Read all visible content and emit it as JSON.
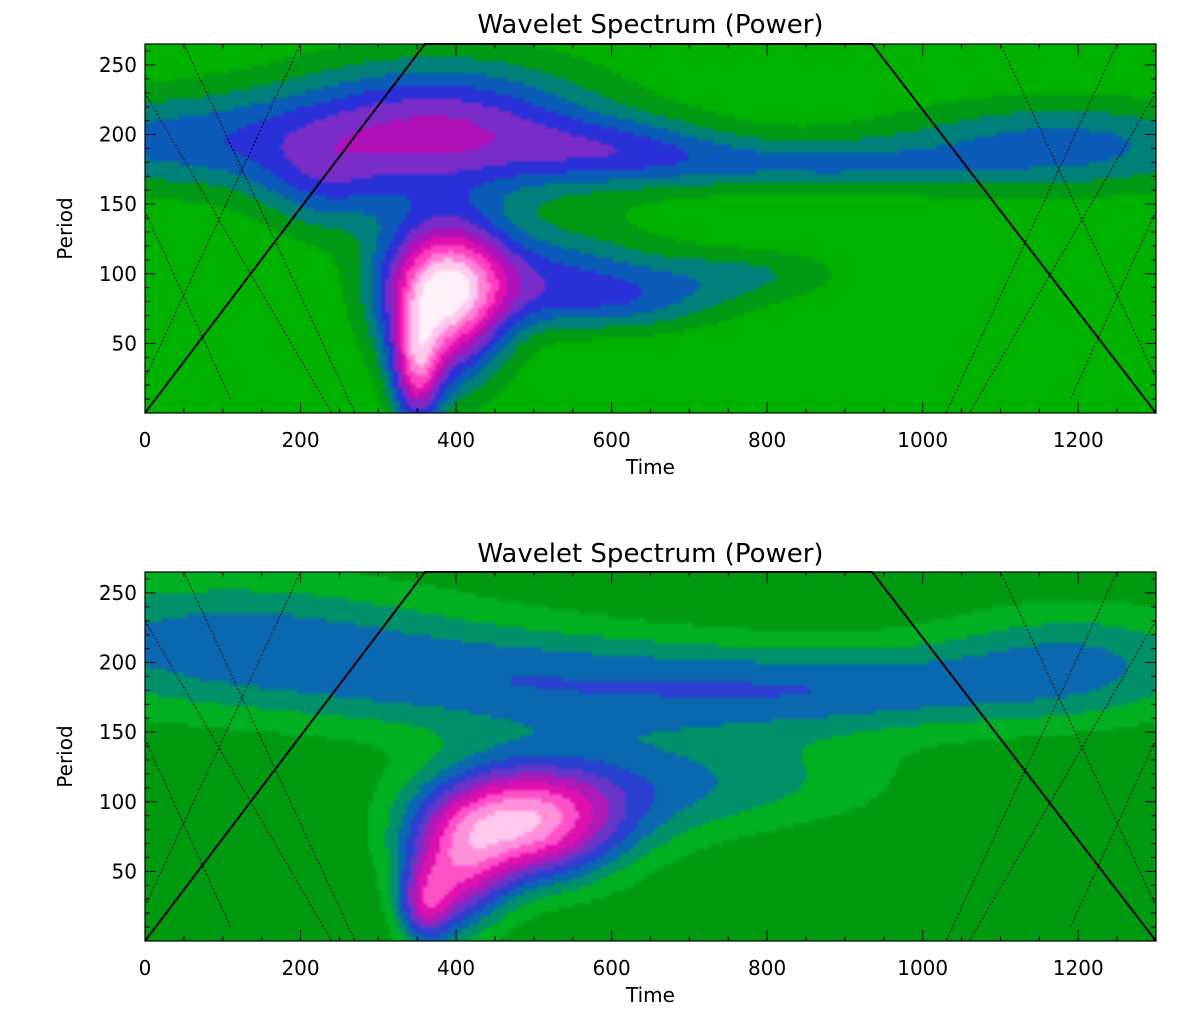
{
  "chart_data": [
    {
      "type": "heatmap",
      "title": "Wavelet Spectrum (Power)",
      "xlabel": "Time",
      "ylabel": "Period",
      "xlim": [
        0,
        1300
      ],
      "ylim": [
        0,
        265
      ],
      "xticks": [
        0,
        200,
        400,
        600,
        800,
        1000,
        1200
      ],
      "yticks": [
        50,
        100,
        150,
        200,
        250
      ],
      "background_color": "#00b200",
      "cone_of_influence": [
        [
          0,
          0
        ],
        [
          360,
          265
        ],
        [
          935,
          265
        ],
        [
          1300,
          0
        ]
      ],
      "dotted_lines": [
        [
          [
            0,
            25
          ],
          [
            200,
            265
          ]
        ],
        [
          [
            0,
            145
          ],
          [
            110,
            10
          ]
        ],
        [
          [
            0,
            230
          ],
          [
            240,
            0
          ]
        ],
        [
          [
            50,
            265
          ],
          [
            270,
            0
          ]
        ],
        [
          [
            1300,
            25
          ],
          [
            1100,
            265
          ]
        ],
        [
          [
            1300,
            145
          ],
          [
            1190,
            10
          ]
        ],
        [
          [
            1300,
            230
          ],
          [
            1060,
            0
          ]
        ],
        [
          [
            1250,
            265
          ],
          [
            1030,
            0
          ]
        ]
      ],
      "levels": [
        "#009a14",
        "#00807a",
        "#0a5cb8",
        "#2a30d8",
        "#7a2cc8",
        "#b010b8",
        "#e010b0",
        "#ff40c0",
        "#ff80d8",
        "#ffc8ec",
        "#fff0fa"
      ],
      "blobs": [
        {
          "t": 30,
          "p": 195,
          "st": 180,
          "sp": 26,
          "v": 3.2
        },
        {
          "t": 380,
          "p": 205,
          "st": 150,
          "sp": 35,
          "v": 5.6
        },
        {
          "t": 620,
          "p": 188,
          "st": 110,
          "sp": 18,
          "v": 3.0
        },
        {
          "t": 860,
          "p": 178,
          "st": 140,
          "sp": 14,
          "v": 2.5
        },
        {
          "t": 1180,
          "p": 192,
          "st": 170,
          "sp": 24,
          "v": 3.4
        },
        {
          "t": 385,
          "p": 82,
          "st": 55,
          "sp": 40,
          "v": 9.8
        },
        {
          "t": 350,
          "p": 30,
          "st": 22,
          "sp": 30,
          "v": 6.0
        },
        {
          "t": 500,
          "p": 100,
          "st": 120,
          "sp": 25,
          "v": 3.6
        },
        {
          "t": 620,
          "p": 80,
          "st": 100,
          "sp": 16,
          "v": 2.3
        },
        {
          "t": 780,
          "p": 100,
          "st": 90,
          "sp": 14,
          "v": 1.8
        },
        {
          "t": 230,
          "p": 160,
          "st": 60,
          "sp": 25,
          "v": 2.2
        }
      ]
    },
    {
      "type": "heatmap",
      "title": "Wavelet Spectrum (Power)",
      "xlabel": "Time",
      "ylabel": "Period",
      "xlim": [
        0,
        1300
      ],
      "ylim": [
        0,
        265
      ],
      "xticks": [
        0,
        200,
        400,
        600,
        800,
        1000,
        1200
      ],
      "yticks": [
        50,
        100,
        150,
        200,
        250
      ],
      "background_color": "#009a10",
      "cone_of_influence": [
        [
          0,
          0
        ],
        [
          360,
          265
        ],
        [
          935,
          265
        ],
        [
          1300,
          0
        ]
      ],
      "dotted_lines": [
        [
          [
            0,
            25
          ],
          [
            200,
            265
          ]
        ],
        [
          [
            0,
            145
          ],
          [
            110,
            10
          ]
        ],
        [
          [
            0,
            230
          ],
          [
            240,
            0
          ]
        ],
        [
          [
            50,
            265
          ],
          [
            270,
            0
          ]
        ],
        [
          [
            1300,
            25
          ],
          [
            1100,
            265
          ]
        ],
        [
          [
            1300,
            145
          ],
          [
            1190,
            10
          ]
        ],
        [
          [
            1300,
            230
          ],
          [
            1060,
            0
          ]
        ],
        [
          [
            1250,
            265
          ],
          [
            1030,
            0
          ]
        ]
      ],
      "levels": [
        "#00b020",
        "#00906a",
        "#0a68b0",
        "#2a40d0",
        "#6a34c8",
        "#b018b8",
        "#e010b0",
        "#ff50c8",
        "#ff90dc",
        "#ffc8ec",
        "#fff0fa"
      ],
      "blobs": [
        {
          "t": 100,
          "p": 215,
          "st": 230,
          "sp": 35,
          "v": 3.4
        },
        {
          "t": 520,
          "p": 185,
          "st": 230,
          "sp": 28,
          "v": 3.2
        },
        {
          "t": 900,
          "p": 180,
          "st": 180,
          "sp": 22,
          "v": 2.8
        },
        {
          "t": 1200,
          "p": 200,
          "st": 140,
          "sp": 30,
          "v": 3.0
        },
        {
          "t": 480,
          "p": 85,
          "st": 90,
          "sp": 30,
          "v": 9.5
        },
        {
          "t": 400,
          "p": 45,
          "st": 45,
          "sp": 30,
          "v": 5.0
        },
        {
          "t": 360,
          "p": 25,
          "st": 25,
          "sp": 20,
          "v": 4.5
        },
        {
          "t": 640,
          "p": 110,
          "st": 110,
          "sp": 30,
          "v": 2.2
        },
        {
          "t": 820,
          "p": 115,
          "st": 130,
          "sp": 25,
          "v": 1.6
        }
      ]
    }
  ]
}
